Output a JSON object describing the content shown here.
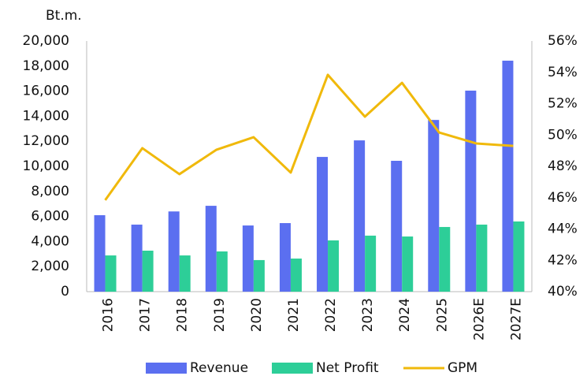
{
  "chart_data": {
    "type": "bar",
    "y_label": "Bt.m.",
    "categories": [
      "2016",
      "2017",
      "2018",
      "2019",
      "2020",
      "2021",
      "2022",
      "2023",
      "2024",
      "2025",
      "2026E",
      "2027E"
    ],
    "series": [
      {
        "name": "Revenue",
        "color": "#5b6ff0",
        "values": [
          6100,
          5350,
          6400,
          6850,
          5280,
          5470,
          10750,
          12070,
          10440,
          13700,
          16040,
          18430
        ]
      },
      {
        "name": "Net Profit",
        "color": "#2dce98",
        "values": [
          2890,
          3270,
          2890,
          3210,
          2520,
          2640,
          4090,
          4470,
          4400,
          5160,
          5350,
          5600
        ]
      },
      {
        "name": "GPM",
        "color": "#f0b90b",
        "type": "line",
        "axis": "y2",
        "values": [
          45.84,
          49.16,
          47.5,
          49.06,
          49.86,
          47.6,
          53.84,
          51.17,
          53.33,
          50.16,
          49.46,
          49.3
        ]
      }
    ],
    "ylim": [
      0,
      20000
    ],
    "yticks": [
      0,
      {
        "value": 2000,
        "label": "2,000"
      },
      {
        "value": 4000,
        "label": "4,000"
      },
      {
        "value": 6000,
        "label": "6,000"
      },
      {
        "value": 8000,
        "label": "8,000"
      },
      {
        "value": 10000,
        "label": "10,000"
      },
      {
        "value": 12000,
        "label": "12,000"
      },
      {
        "value": 14000,
        "label": "14,000"
      },
      {
        "value": 16000,
        "label": "16,000"
      },
      {
        "value": 18000,
        "label": "18,000"
      },
      {
        "value": 20000,
        "label": "20,000"
      }
    ],
    "y2lim": [
      40,
      56
    ],
    "y2ticks": [
      {
        "value": 40,
        "label": "40%"
      },
      {
        "value": 42,
        "label": "42%"
      },
      {
        "value": 44,
        "label": "44%"
      },
      {
        "value": 46,
        "label": "46%"
      },
      {
        "value": 48,
        "label": "48%"
      },
      {
        "value": 50,
        "label": "50%"
      },
      {
        "value": 52,
        "label": "52%"
      },
      {
        "value": 54,
        "label": "54%"
      },
      {
        "value": 56,
        "label": "56%"
      }
    ],
    "legend": "bottom",
    "grid": false
  }
}
